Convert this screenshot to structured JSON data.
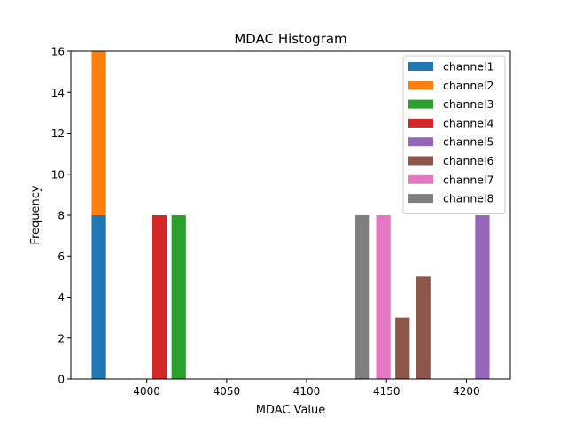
{
  "chart_data": {
    "type": "bar",
    "title": "MDAC Histogram",
    "xlabel": "MDAC Value",
    "ylabel": "Frequency",
    "xlim": [
      3952.5,
      4227.5
    ],
    "ylim": [
      0,
      16
    ],
    "xticks": [
      4000,
      4050,
      4100,
      4150,
      4200
    ],
    "yticks": [
      0,
      2,
      4,
      6,
      8,
      10,
      12,
      14,
      16
    ],
    "bar_width": 10,
    "stacked": true,
    "legend_position": "top-right",
    "grid": false,
    "series": [
      {
        "name": "channel1",
        "color": "#1f77b4",
        "bars": [
          {
            "x": 3970,
            "value": 8
          }
        ]
      },
      {
        "name": "channel2",
        "color": "#ff7f0e",
        "bars": [
          {
            "x": 3970,
            "value": 8
          }
        ]
      },
      {
        "name": "channel3",
        "color": "#2ca02c",
        "bars": [
          {
            "x": 4020,
            "value": 8
          }
        ]
      },
      {
        "name": "channel4",
        "color": "#d62728",
        "bars": [
          {
            "x": 4008,
            "value": 8
          }
        ]
      },
      {
        "name": "channel5",
        "color": "#9467bd",
        "bars": [
          {
            "x": 4210,
            "value": 8
          }
        ]
      },
      {
        "name": "channel6",
        "color": "#8c564b",
        "bars": [
          {
            "x": 4160,
            "value": 3
          },
          {
            "x": 4173,
            "value": 5
          }
        ]
      },
      {
        "name": "channel7",
        "color": "#e377c2",
        "bars": [
          {
            "x": 4148,
            "value": 8
          }
        ]
      },
      {
        "name": "channel8",
        "color": "#7f7f7f",
        "bars": [
          {
            "x": 4135,
            "value": 8
          }
        ]
      }
    ]
  }
}
